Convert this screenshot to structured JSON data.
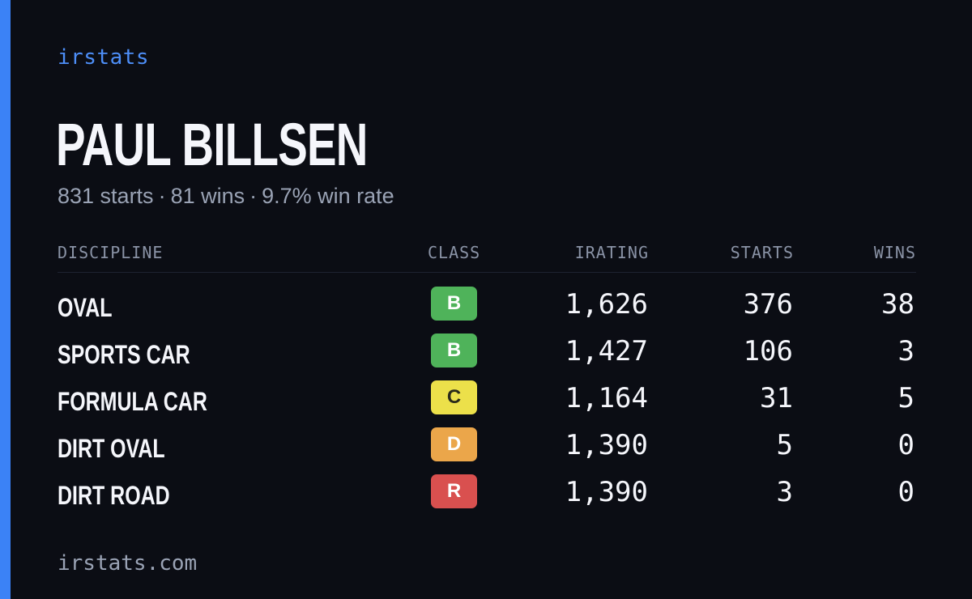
{
  "brand": "irstats",
  "driver": {
    "name": "PAUL BILLSEN"
  },
  "summary": {
    "starts": "831 starts",
    "wins": "81 wins",
    "win_rate": "9.7% win rate",
    "separator": "·"
  },
  "table": {
    "headers": {
      "discipline": "DISCIPLINE",
      "class": "CLASS",
      "irating": "IRATING",
      "starts": "STARTS",
      "wins": "WINS"
    },
    "rows": [
      {
        "discipline": "OVAL",
        "class": "B",
        "class_color": "#4fb35a",
        "class_text_color": "#ffffff",
        "irating": "1,626",
        "starts": "376",
        "wins": "38"
      },
      {
        "discipline": "SPORTS CAR",
        "class": "B",
        "class_color": "#4fb35a",
        "class_text_color": "#ffffff",
        "irating": "1,427",
        "starts": "106",
        "wins": "3"
      },
      {
        "discipline": "FORMULA CAR",
        "class": "C",
        "class_color": "#ece04a",
        "class_text_color": "#2a2a1a",
        "irating": "1,164",
        "starts": "31",
        "wins": "5"
      },
      {
        "discipline": "DIRT OVAL",
        "class": "D",
        "class_color": "#eba64a",
        "class_text_color": "#ffffff",
        "irating": "1,390",
        "starts": "5",
        "wins": "0"
      },
      {
        "discipline": "DIRT ROAD",
        "class": "R",
        "class_color": "#d9504f",
        "class_text_color": "#ffffff",
        "irating": "1,390",
        "starts": "3",
        "wins": "0"
      }
    ]
  },
  "footer": "irstats.com",
  "colors": {
    "background": "#0b0d14",
    "accent": "#3b82f6",
    "brand_text": "#4d8ef7"
  }
}
